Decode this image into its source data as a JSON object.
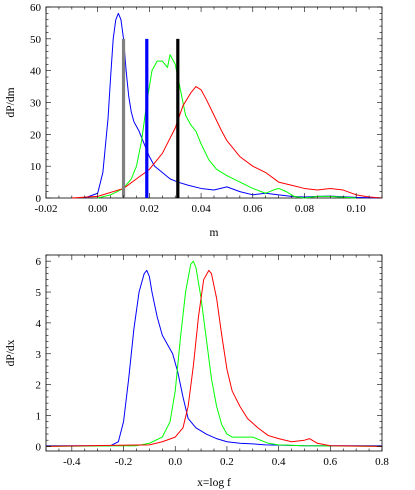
{
  "chart_data": [
    {
      "type": "line",
      "xlabel": "m",
      "ylabel": "dP/dm",
      "xlim": [
        -0.02,
        0.11
      ],
      "ylim": [
        0,
        60
      ],
      "xticks": [
        "-0.02",
        "0.00",
        "0.02",
        "0.04",
        "0.06",
        "0.08",
        "0.10"
      ],
      "xtick_values": [
        -0.02,
        0.0,
        0.02,
        0.04,
        0.06,
        0.08,
        0.1
      ],
      "yticks": [
        "0",
        "10",
        "20",
        "30",
        "40",
        "50",
        "60"
      ],
      "ytick_values": [
        0,
        10,
        20,
        30,
        40,
        50,
        60
      ],
      "grid": false,
      "frame": true,
      "series": [
        {
          "color": "#0000ff",
          "x": [
            -0.005,
            0.0,
            0.002,
            0.004,
            0.005,
            0.006,
            0.007,
            0.008,
            0.009,
            0.01,
            0.011,
            0.012,
            0.013,
            0.014,
            0.016,
            0.018,
            0.02,
            0.022,
            0.025,
            0.028,
            0.031,
            0.035,
            0.04,
            0.045,
            0.05,
            0.055,
            0.06,
            0.065,
            0.07,
            0.075,
            0.08,
            0.085,
            0.09,
            0.1,
            0.11
          ],
          "y": [
            0,
            1.5,
            8,
            25,
            38,
            50,
            56,
            58,
            56,
            50,
            40,
            32,
            27,
            24,
            21,
            17,
            13,
            10,
            8,
            6,
            5,
            4,
            3,
            2.5,
            3.5,
            2,
            1,
            1.5,
            1,
            0.5,
            0.3,
            0.5,
            0.6,
            0.2,
            0
          ]
        },
        {
          "color": "#00ff00",
          "x": [
            0.0,
            0.005,
            0.01,
            0.013,
            0.015,
            0.017,
            0.019,
            0.021,
            0.023,
            0.025,
            0.027,
            0.028,
            0.03,
            0.032,
            0.034,
            0.036,
            0.038,
            0.04,
            0.043,
            0.046,
            0.05,
            0.055,
            0.06,
            0.065,
            0.068,
            0.07,
            0.073,
            0.076,
            0.08,
            0.085,
            0.09,
            0.1
          ],
          "y": [
            0,
            1,
            3,
            6,
            10,
            18,
            30,
            40,
            43,
            43,
            41,
            45,
            42,
            34,
            26,
            23,
            21,
            17,
            12,
            9,
            7,
            5,
            3,
            1.5,
            2.5,
            3,
            2,
            0.5,
            0,
            0.5,
            0.5,
            0
          ]
        },
        {
          "color": "#ff0000",
          "x": [
            -0.01,
            0.0,
            0.01,
            0.015,
            0.02,
            0.025,
            0.03,
            0.033,
            0.036,
            0.038,
            0.04,
            0.042,
            0.045,
            0.048,
            0.05,
            0.055,
            0.06,
            0.065,
            0.07,
            0.075,
            0.08,
            0.085,
            0.09,
            0.095,
            0.1,
            0.105,
            0.11
          ],
          "y": [
            0,
            0.5,
            3,
            6,
            9,
            14,
            22,
            29,
            33,
            35,
            34,
            31,
            26,
            21,
            18,
            13,
            10,
            8,
            5,
            4,
            3,
            2.5,
            3,
            2.5,
            1,
            0.3,
            0
          ]
        }
      ],
      "vertical_bars": [
        {
          "x": 0.01,
          "height": 50,
          "color": "#808080"
        },
        {
          "x": 0.019,
          "height": 50,
          "color": "#0000ff"
        },
        {
          "x": 0.031,
          "height": 50,
          "color": "#000000"
        }
      ]
    },
    {
      "type": "line",
      "xlabel": "x=log f",
      "ylabel": "dP/dx",
      "xlim": [
        -0.5,
        0.8
      ],
      "ylim": [
        -0.15,
        6.2
      ],
      "xticks": [
        "-0.4",
        "-0.2",
        "0.0",
        "0.2",
        "0.4",
        "0.6",
        "0.8"
      ],
      "xtick_values": [
        -0.4,
        -0.2,
        0.0,
        0.2,
        0.4,
        0.6,
        0.8
      ],
      "yticks": [
        "0",
        "1",
        "2",
        "3",
        "4",
        "5",
        "6"
      ],
      "ytick_values": [
        0,
        1,
        2,
        3,
        4,
        5,
        6
      ],
      "grid": false,
      "frame": true,
      "series": [
        {
          "color": "#0000ff",
          "x": [
            -0.5,
            -0.25,
            -0.22,
            -0.2,
            -0.18,
            -0.16,
            -0.14,
            -0.12,
            -0.11,
            -0.1,
            -0.09,
            -0.07,
            -0.05,
            -0.03,
            -0.01,
            0.01,
            0.03,
            0.05,
            0.08,
            0.12,
            0.16,
            0.2,
            0.25,
            0.3,
            0.35,
            0.4,
            0.5,
            0.8
          ],
          "y": [
            0.02,
            0.02,
            0.15,
            0.8,
            2.2,
            3.8,
            5.0,
            5.6,
            5.7,
            5.5,
            5.0,
            4.2,
            3.6,
            3.3,
            3.0,
            2.4,
            1.6,
            0.9,
            0.6,
            0.4,
            0.25,
            0.15,
            0.1,
            0.08,
            0.05,
            0.04,
            0.02,
            0.02
          ]
        },
        {
          "color": "#00ff00",
          "x": [
            -0.5,
            -0.15,
            -0.1,
            -0.05,
            -0.02,
            0.0,
            0.02,
            0.04,
            0.06,
            0.07,
            0.08,
            0.1,
            0.12,
            0.14,
            0.16,
            0.18,
            0.2,
            0.22,
            0.25,
            0.28,
            0.3,
            0.33,
            0.36,
            0.4,
            0.5,
            0.8
          ],
          "y": [
            0.0,
            0.02,
            0.1,
            0.3,
            0.8,
            1.8,
            3.5,
            5.0,
            5.9,
            6.0,
            5.8,
            4.8,
            3.5,
            2.2,
            1.3,
            0.7,
            0.4,
            0.3,
            0.3,
            0.3,
            0.3,
            0.2,
            0.1,
            0.05,
            0.02,
            0.0
          ]
        },
        {
          "color": "#ff0000",
          "x": [
            -0.5,
            -0.1,
            -0.05,
            0.0,
            0.03,
            0.05,
            0.07,
            0.09,
            0.11,
            0.13,
            0.14,
            0.16,
            0.18,
            0.2,
            0.22,
            0.25,
            0.28,
            0.32,
            0.36,
            0.4,
            0.45,
            0.5,
            0.52,
            0.55,
            0.6,
            0.8
          ],
          "y": [
            0.0,
            0.05,
            0.15,
            0.3,
            0.6,
            1.3,
            2.6,
            4.2,
            5.4,
            5.7,
            5.6,
            4.8,
            3.6,
            2.5,
            1.8,
            1.3,
            0.9,
            0.6,
            0.35,
            0.25,
            0.15,
            0.2,
            0.25,
            0.1,
            0.02,
            0.0
          ]
        }
      ]
    }
  ]
}
